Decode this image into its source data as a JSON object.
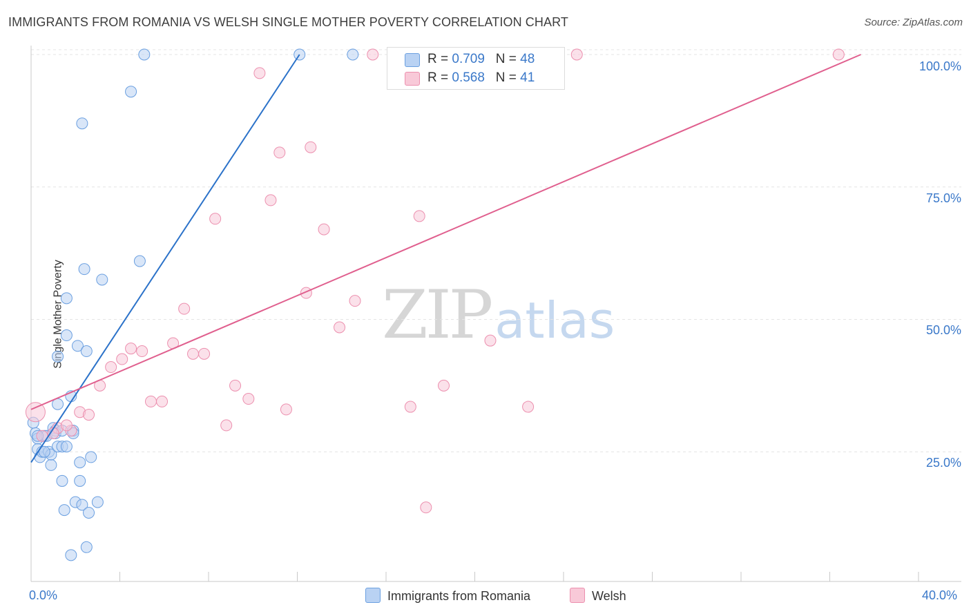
{
  "chart_data": {
    "type": "scatter",
    "title": "IMMIGRANTS FROM ROMANIA VS WELSH SINGLE MOTHER POVERTY CORRELATION CHART",
    "source": "Source: ZipAtlas.com",
    "xlabel": "",
    "ylabel": "Single Mother Poverty",
    "xlim": [
      0,
      40
    ],
    "ylim": [
      0,
      102
    ],
    "x_tick_labels": [
      "0.0%",
      "40.0%"
    ],
    "y_ticks": [
      25,
      50,
      75,
      100
    ],
    "y_tick_labels": [
      "25.0%",
      "50.0%",
      "75.0%",
      "100.0%"
    ],
    "grid": true,
    "watermark": {
      "part1": "ZIP",
      "part2": "atlas"
    },
    "legend_stats": [
      {
        "r_label": "R =",
        "r_value": "0.709",
        "n_label": "N =",
        "n_value": "48"
      },
      {
        "r_label": "R =",
        "r_value": "0.568",
        "n_label": "N =",
        "n_value": "41"
      }
    ],
    "series": [
      {
        "name": "Immigrants from Romania",
        "color": "#6a9fe0",
        "fill": "#b9d2f3",
        "line_color": "#2b72c9",
        "trend": {
          "x": [
            0,
            12.1
          ],
          "y": [
            23,
            100
          ]
        },
        "points": [
          [
            0.1,
            30.5
          ],
          [
            0.2,
            28.5
          ],
          [
            0.3,
            27.5
          ],
          [
            0.3,
            25.5
          ],
          [
            0.4,
            24.0
          ],
          [
            0.5,
            25.0
          ],
          [
            0.6,
            28.0
          ],
          [
            0.7,
            28.0
          ],
          [
            0.8,
            25.0
          ],
          [
            0.9,
            22.5
          ],
          [
            0.9,
            24.5
          ],
          [
            1.0,
            29.5
          ],
          [
            1.1,
            29.0
          ],
          [
            1.1,
            28.5
          ],
          [
            1.2,
            26.0
          ],
          [
            1.2,
            34.0
          ],
          [
            1.2,
            43.0
          ],
          [
            1.4,
            26.0
          ],
          [
            1.4,
            29.0
          ],
          [
            1.4,
            19.5
          ],
          [
            1.5,
            14.0
          ],
          [
            1.6,
            26.0
          ],
          [
            1.6,
            47.0
          ],
          [
            1.6,
            54.0
          ],
          [
            1.8,
            35.5
          ],
          [
            1.8,
            5.5
          ],
          [
            1.9,
            29.0
          ],
          [
            1.9,
            28.5
          ],
          [
            2.0,
            15.5
          ],
          [
            2.1,
            45.0
          ],
          [
            2.2,
            19.5
          ],
          [
            2.2,
            23.0
          ],
          [
            2.3,
            15.0
          ],
          [
            2.3,
            87.0
          ],
          [
            2.4,
            59.5
          ],
          [
            2.5,
            44.0
          ],
          [
            2.5,
            7.0
          ],
          [
            2.6,
            13.5
          ],
          [
            2.7,
            24.0
          ],
          [
            3.0,
            15.5
          ],
          [
            3.2,
            57.5
          ],
          [
            4.5,
            93.0
          ],
          [
            4.9,
            61.0
          ],
          [
            5.1,
            100.0
          ],
          [
            12.1,
            100.0
          ],
          [
            14.5,
            100.0
          ],
          [
            0.3,
            28.0
          ],
          [
            0.6,
            25.0
          ]
        ]
      },
      {
        "name": "Welsh",
        "color": "#ec8fae",
        "fill": "#f8c9d8",
        "line_color": "#e05f8e",
        "trend": {
          "x": [
            0,
            37.4
          ],
          "y": [
            33,
            100
          ]
        },
        "points": [
          [
            0.2,
            32.5
          ],
          [
            0.5,
            28.0
          ],
          [
            1.2,
            29.5
          ],
          [
            1.8,
            29.0
          ],
          [
            1.6,
            30.0
          ],
          [
            2.2,
            32.5
          ],
          [
            2.6,
            32.0
          ],
          [
            3.1,
            37.5
          ],
          [
            3.6,
            41.0
          ],
          [
            4.1,
            42.5
          ],
          [
            4.5,
            44.5
          ],
          [
            5.0,
            44.0
          ],
          [
            5.4,
            34.5
          ],
          [
            5.9,
            34.5
          ],
          [
            6.4,
            45.5
          ],
          [
            6.9,
            52.0
          ],
          [
            7.3,
            43.5
          ],
          [
            7.8,
            43.5
          ],
          [
            8.3,
            69.0
          ],
          [
            8.8,
            30.0
          ],
          [
            9.2,
            37.5
          ],
          [
            9.8,
            35.0
          ],
          [
            10.3,
            96.5
          ],
          [
            10.8,
            72.5
          ],
          [
            11.2,
            81.5
          ],
          [
            11.5,
            33.0
          ],
          [
            12.4,
            55.0
          ],
          [
            12.6,
            82.5
          ],
          [
            13.2,
            67.0
          ],
          [
            13.9,
            48.5
          ],
          [
            14.6,
            53.5
          ],
          [
            15.4,
            100.0
          ],
          [
            17.1,
            33.5
          ],
          [
            17.5,
            69.5
          ],
          [
            17.8,
            14.5
          ],
          [
            18.6,
            37.5
          ],
          [
            20.7,
            46.0
          ],
          [
            22.4,
            33.5
          ],
          [
            24.6,
            100.0
          ],
          [
            36.4,
            100.0
          ],
          [
            1.0,
            28.5
          ]
        ]
      }
    ]
  }
}
